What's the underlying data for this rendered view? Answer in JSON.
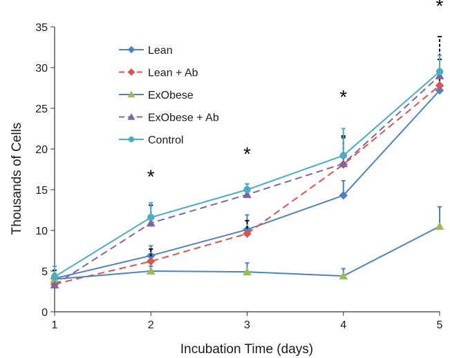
{
  "chart_data": {
    "type": "line",
    "xlabel": "Incubation Time (days)",
    "ylabel": "Thousands of Cells",
    "x": [
      1,
      2,
      3,
      4,
      5
    ],
    "xlim": [
      1,
      5
    ],
    "ylim": [
      0,
      35
    ],
    "yticks": [
      0,
      5,
      10,
      15,
      20,
      25,
      30,
      35
    ],
    "grid": false,
    "legend_position": "top-left",
    "series": [
      {
        "name": "Lean",
        "values": [
          4.1,
          6.9,
          10.1,
          14.3,
          27.2
        ],
        "errors": [
          0.6,
          1.2,
          1.8,
          1.8,
          2.5
        ],
        "color": "#4f81bd",
        "dash": "solid",
        "marker": "diamond"
      },
      {
        "name": "Lean + Ab",
        "values": [
          3.4,
          6.2,
          9.6,
          18.1,
          27.8
        ],
        "errors": [
          0.7,
          1.5,
          1.6,
          3.5,
          3.2
        ],
        "color": "#d9534f",
        "dash": "dashed",
        "marker": "diamond"
      },
      {
        "name": "ExObese",
        "values": [
          4.0,
          5.0,
          4.9,
          4.4,
          10.5
        ],
        "errors": [
          0.7,
          0.6,
          1.1,
          0.9,
          2.4
        ],
        "color": "#9bbb59",
        "dash": "solid",
        "marker": "triangle",
        "line_color": "#4f81bd"
      },
      {
        "name": "ExObese + Ab",
        "values": [
          3.3,
          10.9,
          14.4,
          18.2,
          29.0
        ],
        "errors": [
          1.8,
          2.2,
          1.3,
          3.2,
          4.8
        ],
        "color": "#8064a2",
        "dash": "dashed",
        "marker": "triangle"
      },
      {
        "name": "Control",
        "values": [
          4.3,
          11.6,
          15.0,
          19.2,
          29.5
        ],
        "errors": [
          1.3,
          1.8,
          0.7,
          3.3,
          2.0
        ],
        "color": "#4bacc6",
        "dash": "solid",
        "marker": "circle"
      }
    ],
    "annotations": [
      {
        "text": "*",
        "x": 2,
        "y": 15.8
      },
      {
        "text": "*",
        "x": 3,
        "y": 18.6
      },
      {
        "text": "*",
        "x": 4,
        "y": 25.6
      },
      {
        "text": "*",
        "x": 5,
        "y": 36.8
      }
    ]
  }
}
